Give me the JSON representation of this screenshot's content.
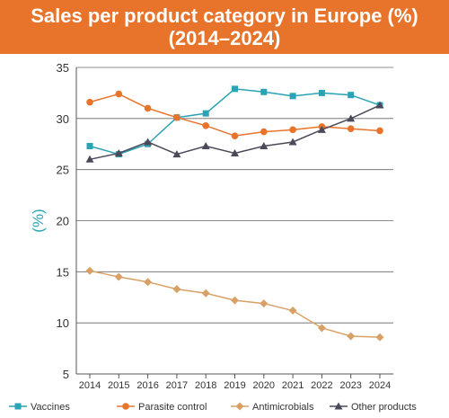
{
  "header": {
    "title_line1": "Sales per product category in Europe (%)",
    "title_line2": "(2014–2024)",
    "background_color": "#e8732a"
  },
  "chart_data": {
    "type": "line",
    "title": "Sales per product category in Europe (%) (2014–2024)",
    "xlabel": "",
    "ylabel": "(%)",
    "ylim": [
      5,
      35
    ],
    "yticks": [
      5,
      10,
      15,
      20,
      25,
      30,
      35
    ],
    "grid": "horizontal",
    "legend_position": "bottom",
    "x": [
      "2014",
      "2015",
      "2016",
      "2017",
      "2018",
      "2019",
      "2020",
      "2021",
      "2022",
      "2023",
      "2024"
    ],
    "series": [
      {
        "name": "Vaccines",
        "color": "#2aa3b4",
        "marker": "square",
        "values": [
          27.3,
          26.5,
          27.5,
          30.1,
          30.5,
          32.9,
          32.6,
          32.2,
          32.5,
          32.3,
          31.3
        ]
      },
      {
        "name": "Parasite control",
        "color": "#e8732a",
        "marker": "circle",
        "values": [
          31.6,
          32.4,
          31.0,
          30.1,
          29.3,
          28.3,
          28.7,
          28.9,
          29.2,
          29.0,
          28.8
        ]
      },
      {
        "name": "Antimicrobials",
        "color": "#d9a066",
        "marker": "diamond",
        "values": [
          15.1,
          14.5,
          14.0,
          13.3,
          12.9,
          12.2,
          11.9,
          11.2,
          9.5,
          8.7,
          8.6
        ]
      },
      {
        "name": "Other products",
        "color": "#4a4a5a",
        "marker": "triangle",
        "values": [
          26.0,
          26.6,
          27.7,
          26.5,
          27.3,
          26.6,
          27.3,
          27.7,
          28.9,
          30.0,
          31.3
        ]
      }
    ]
  }
}
